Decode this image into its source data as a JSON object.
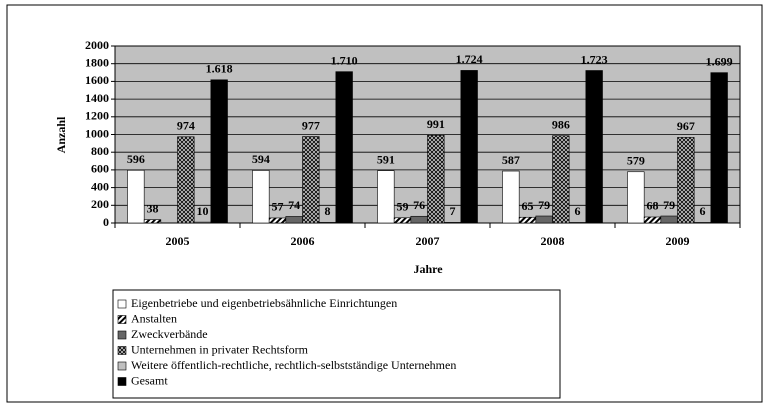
{
  "chart_data": {
    "type": "bar",
    "x_label": "Jahre",
    "y_label": "Anzahl",
    "categories": [
      "2005",
      "2006",
      "2007",
      "2008",
      "2009"
    ],
    "series": [
      {
        "name": "Eigenbetriebe und eigenbetriebsähnliche Einrichtungen",
        "color": "#ffffff",
        "values": [
          596,
          594,
          591,
          587,
          579
        ]
      },
      {
        "name": "Anstalten",
        "color": "#ffffff",
        "pattern": "diagonal",
        "values": [
          38,
          57,
          59,
          65,
          68
        ]
      },
      {
        "name": "Zweckverbände",
        "color": "#666666",
        "values": [
          null,
          74,
          76,
          79,
          79
        ]
      },
      {
        "name": "Unternehmen in privater Rechtsform",
        "color": "#c8c8c8",
        "pattern": "crosshatch",
        "values": [
          974,
          977,
          991,
          986,
          967
        ]
      },
      {
        "name": "Weitere öffentlich-rechtliche, rechtlich-selbstständige Unternehmen",
        "color": "#c0c0c0",
        "values": [
          10,
          8,
          7,
          6,
          6
        ]
      },
      {
        "name": "Gesamt",
        "color": "#000000",
        "values": [
          1618,
          1710,
          1724,
          1723,
          1699
        ],
        "value_labels": [
          "1.618",
          "1.710",
          "1.724",
          "1.723",
          "1.699"
        ]
      }
    ],
    "ylim": [
      0,
      2000
    ],
    "yticks": [
      0,
      200,
      400,
      600,
      800,
      1000,
      1200,
      1400,
      1600,
      1800,
      2000
    ],
    "grid": true,
    "plot_background": "#c0c0c0",
    "legend": "bottom"
  }
}
